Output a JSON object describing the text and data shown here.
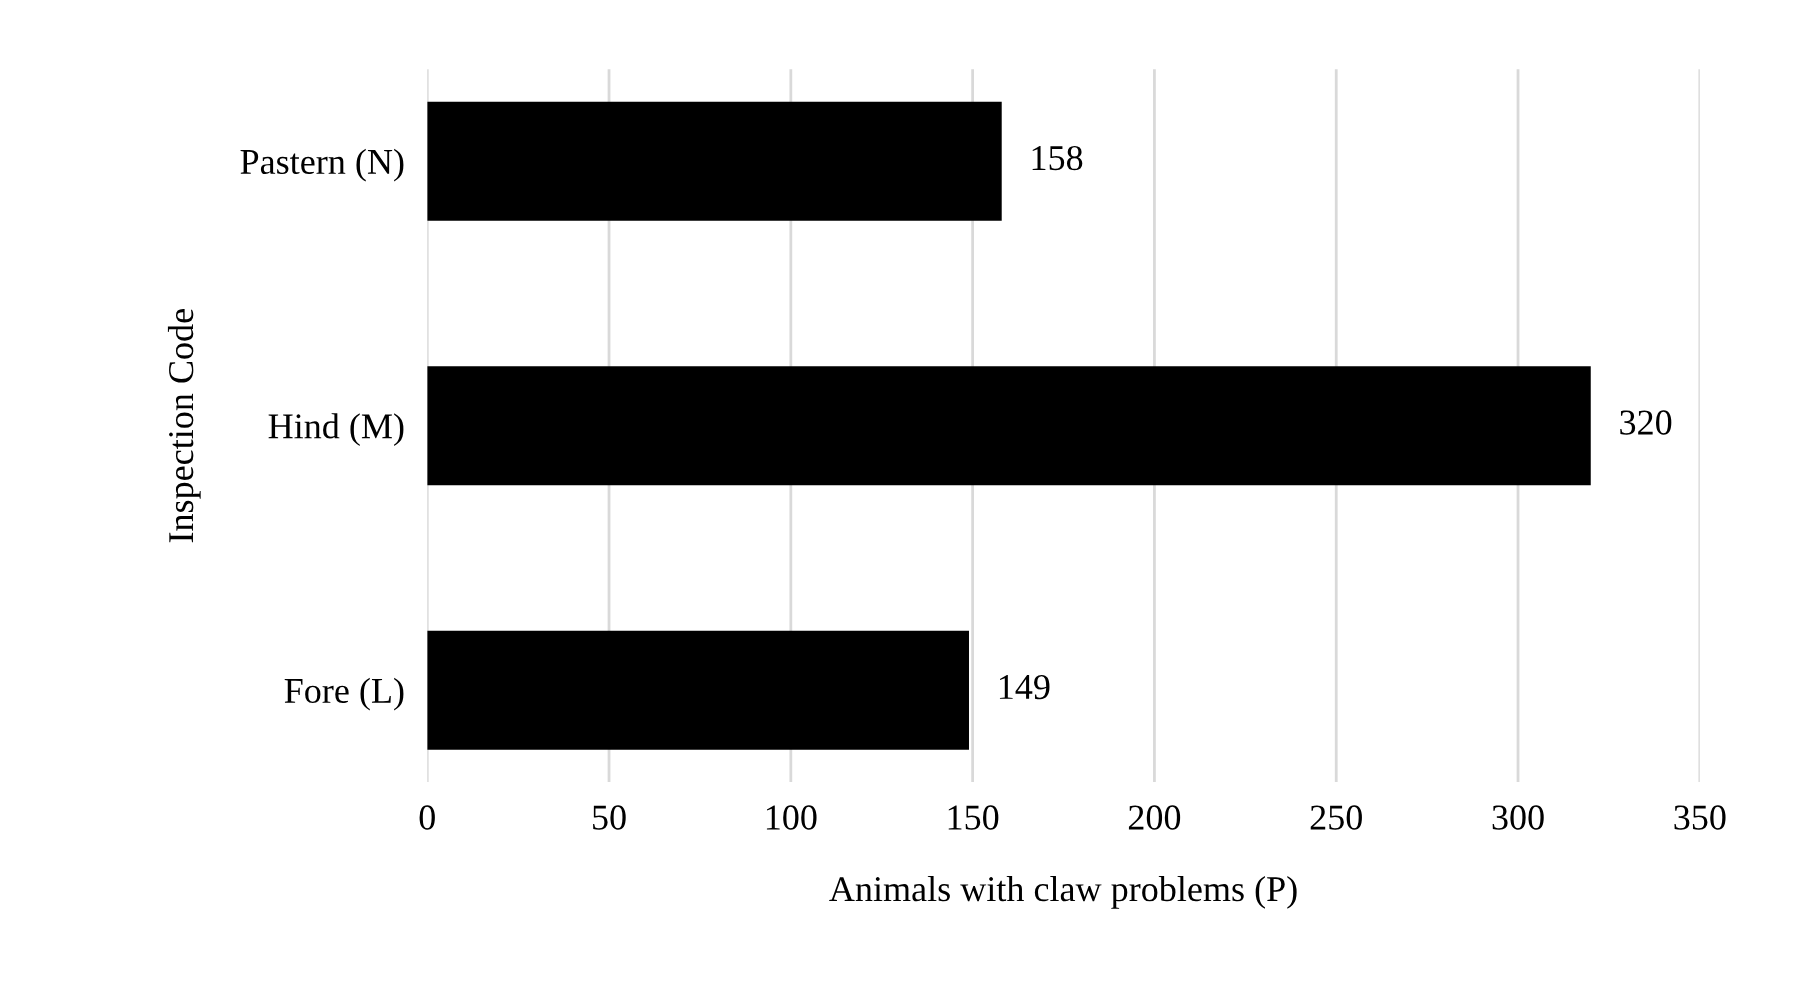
{
  "chart_data": {
    "type": "bar",
    "orientation": "horizontal",
    "xlabel": "Animals with claw problems (P)",
    "ylabel": "Inspection Code",
    "categories": [
      "Pastern (N)",
      "Hind (M)",
      "Fore (L)"
    ],
    "values": [
      158,
      320,
      149
    ],
    "color": "#000000",
    "data_labels": true,
    "xlim": [
      0,
      350
    ],
    "xticks": [
      0,
      50,
      100,
      150,
      200,
      250,
      300,
      350
    ],
    "grid": "x"
  }
}
